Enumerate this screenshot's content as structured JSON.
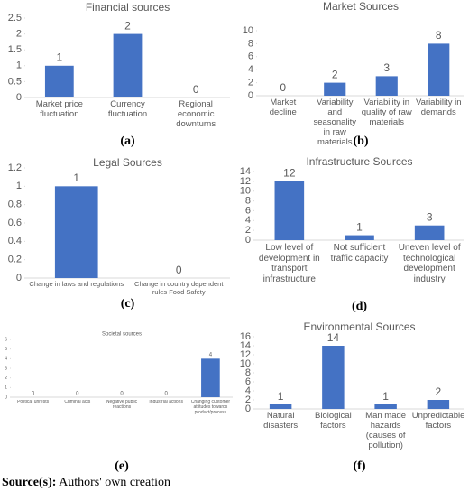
{
  "chart_data": [
    {
      "type": "bar",
      "title": "Financial sources",
      "caption": "(a)",
      "color": "#4472c4",
      "categories": [
        "Market price fluctuation",
        "Currency fluctuation",
        "Regional economic downturns"
      ],
      "values": [
        1,
        2,
        0
      ],
      "ylim": [
        0,
        2.5
      ],
      "yticks": [
        0,
        0.5,
        1,
        1.5,
        2,
        2.5
      ]
    },
    {
      "type": "bar",
      "title": "Market Sources",
      "caption": "(b)",
      "color": "#4472c4",
      "categories": [
        "Market decline",
        "Variability and seasonality in raw materials",
        "Variability in quality of raw materials",
        "Variability in demands"
      ],
      "values": [
        0,
        2,
        3,
        8
      ],
      "ylim": [
        0,
        10
      ],
      "yticks": [
        0,
        2,
        4,
        6,
        8,
        10
      ]
    },
    {
      "type": "bar",
      "title": "Legal Sources",
      "caption": "(c)",
      "color": "#4472c4",
      "categories": [
        "Change in laws and regulations",
        "Change in country dependent rules Food Safety"
      ],
      "values": [
        1,
        0
      ],
      "ylim": [
        0,
        1.2
      ],
      "yticks": [
        0,
        0.2,
        0.4,
        0.6,
        0.8,
        1,
        1.2
      ]
    },
    {
      "type": "bar",
      "title": "Infrastructure Sources",
      "caption": "(d)",
      "color": "#4472c4",
      "categories": [
        "Low level of development in transport infrastructure",
        "Not sufficient traffic capacity",
        "Uneven level of technological development industry"
      ],
      "values": [
        12,
        1,
        3
      ],
      "ylim": [
        0,
        14
      ],
      "yticks": [
        0,
        2,
        4,
        6,
        8,
        10,
        12,
        14
      ]
    },
    {
      "type": "bar",
      "title": "Societal sources",
      "caption": "(e)",
      "color": "#4472c4",
      "categories": [
        "Political unrests",
        "Criminal acts",
        "Negative public reactions",
        "Industrial actions",
        "Changing customer attitudes towards product/process"
      ],
      "values": [
        0,
        0,
        0,
        0,
        4
      ],
      "ylim": [
        0,
        6
      ],
      "yticks": [
        0,
        1,
        2,
        3,
        4,
        5,
        6
      ]
    },
    {
      "type": "bar",
      "title": "Environmental Sources",
      "caption": "(f)",
      "color": "#4472c4",
      "categories": [
        "Natural disasters",
        "Biological factors",
        "Man made hazards (causes of pollution)",
        "Unpredictable factors"
      ],
      "values": [
        1,
        14,
        1,
        2
      ],
      "ylim": [
        0,
        16
      ],
      "yticks": [
        0,
        2,
        4,
        6,
        8,
        10,
        12,
        14,
        16
      ]
    }
  ],
  "source_label": "Source(s):",
  "source_text": "Authors' own creation"
}
